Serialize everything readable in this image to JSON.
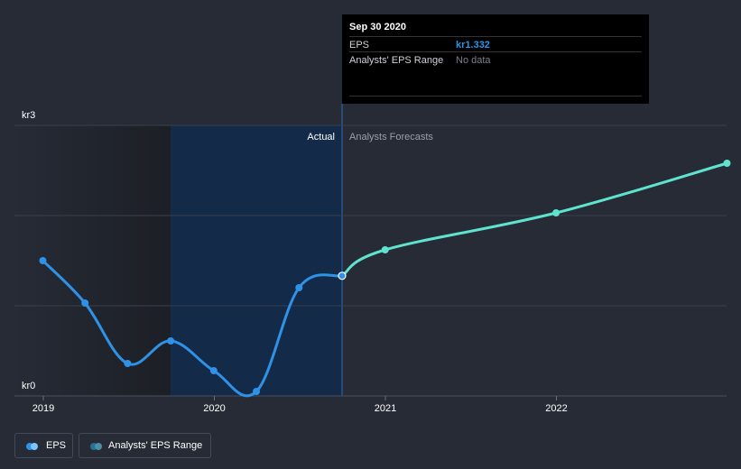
{
  "chart_data": {
    "type": "line",
    "y_axis": {
      "unit_prefix": "kr",
      "min": 0,
      "max": 3,
      "labels": [
        "kr3",
        "kr0"
      ],
      "gridlines": [
        0,
        1,
        2,
        3
      ]
    },
    "x_axis": {
      "ticks": [
        "2019",
        "2020",
        "2021",
        "2022"
      ]
    },
    "regions": {
      "actual_label": "Actual",
      "forecast_label": "Analysts Forecasts"
    },
    "series": [
      {
        "name": "EPS",
        "color": "#2f92e6",
        "points": [
          {
            "date": "2018-12-31",
            "value": 1.5
          },
          {
            "date": "2019-03-31",
            "value": 1.03
          },
          {
            "date": "2019-06-30",
            "value": 0.36
          },
          {
            "date": "2019-09-30",
            "value": 0.61
          },
          {
            "date": "2019-12-31",
            "value": 0.28
          },
          {
            "date": "2020-03-31",
            "value": 0.05
          },
          {
            "date": "2020-06-30",
            "value": 1.2
          },
          {
            "date": "2020-09-30",
            "value": 1.332
          }
        ]
      },
      {
        "name": "Analysts Forecasts",
        "color": "#5fe3cf",
        "points": [
          {
            "date": "2020-09-30",
            "value": 1.332
          },
          {
            "date": "2020-12-31",
            "value": 1.62
          },
          {
            "date": "2021-12-31",
            "value": 2.03
          },
          {
            "date": "2022-12-31",
            "value": 2.58
          }
        ]
      }
    ]
  },
  "tooltip": {
    "date": "Sep 30 2020",
    "eps_label": "EPS",
    "eps_value": "kr1.332",
    "range_label": "Analysts' EPS Range",
    "range_value": "No data"
  },
  "legend": {
    "eps_label": "EPS",
    "eps_color": "#2f92e6",
    "range_label": "Analysts' EPS Range",
    "range_color": "#2a6f95"
  }
}
